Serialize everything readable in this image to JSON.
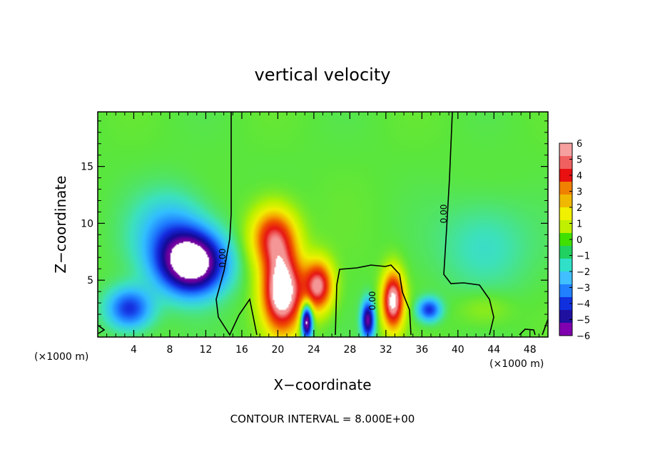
{
  "chart_data": {
    "type": "heatmap",
    "title": "vertical velocity",
    "xlabel": "X−coordinate",
    "ylabel": "Z−coordinate",
    "x_unit_left": "(×1000 m)",
    "x_unit_right": "(×1000 m)",
    "footer": "CONTOUR INTERVAL = 8.000E+00",
    "xlim": [
      0,
      50
    ],
    "ylim": [
      0,
      19.8
    ],
    "x_ticks": [
      4,
      8,
      12,
      16,
      20,
      24,
      28,
      32,
      36,
      40,
      44,
      48
    ],
    "y_ticks": [
      5,
      10,
      15
    ],
    "colorbar": {
      "range": [
        -6,
        6
      ],
      "labels": [
        "6",
        "5",
        "4",
        "3",
        "2",
        "1",
        "0",
        "−1",
        "−2",
        "−3",
        "−4",
        "−5",
        "−6"
      ],
      "colors": [
        "#f7a0a0",
        "#f06060",
        "#e81010",
        "#f08000",
        "#f0b800",
        "#f0f000",
        "#c0f000",
        "#40e000",
        "#20d060",
        "#30e0c8",
        "#40c0ff",
        "#2080ff",
        "#1030e0",
        "#2010a0",
        "#8000b0"
      ]
    },
    "contour_label": "0.00",
    "features": [
      {
        "x": 10.5,
        "z": 6.5,
        "w": -8,
        "sx": 3.5,
        "sz": 2.6
      },
      {
        "x": 3.5,
        "z": 2.5,
        "w": -4,
        "sx": 2.5,
        "sz": 1.8
      },
      {
        "x": 8.0,
        "z": 9.0,
        "w": -2.5,
        "sx": 4.0,
        "sz": 3.5
      },
      {
        "x": 20.5,
        "z": 4.0,
        "w": 8,
        "sx": 2.2,
        "sz": 3.5
      },
      {
        "x": 19.5,
        "z": 8.8,
        "w": 5,
        "sx": 2.5,
        "sz": 2.6
      },
      {
        "x": 24.5,
        "z": 4.5,
        "w": 6,
        "sx": 1.6,
        "sz": 2.2
      },
      {
        "x": 23.2,
        "z": 1.4,
        "w": -8,
        "sx": 0.6,
        "sz": 1.5
      },
      {
        "x": 30.0,
        "z": 1.5,
        "w": -6,
        "sx": 0.7,
        "sz": 1.6
      },
      {
        "x": 32.8,
        "z": 3.2,
        "w": 7,
        "sx": 1.2,
        "sz": 2.5
      },
      {
        "x": 36.8,
        "z": 2.4,
        "w": -4,
        "sx": 1.3,
        "sz": 1.0
      },
      {
        "x": 43.0,
        "z": 2.5,
        "w": 0.8,
        "sx": 3.0,
        "sz": 1.5
      },
      {
        "x": 43.0,
        "z": 8.0,
        "w": -1.2,
        "sx": 5.0,
        "sz": 4.0
      }
    ]
  }
}
